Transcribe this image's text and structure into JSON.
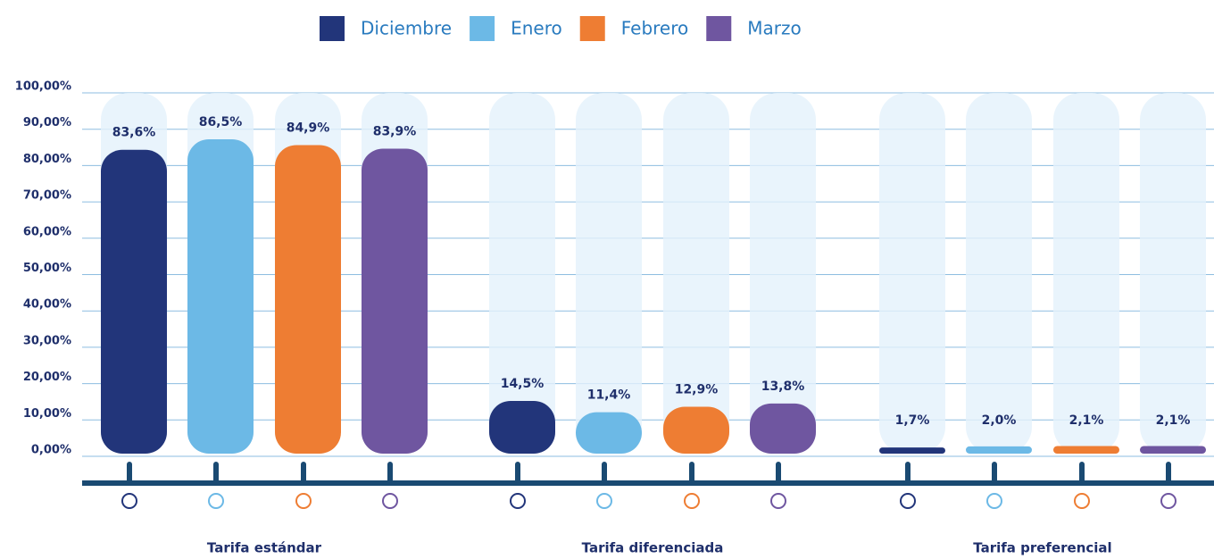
{
  "chart_data": {
    "type": "bar",
    "categories": [
      "Tarifa estándar",
      "Tarifa diferenciada",
      "Tarifa preferencial"
    ],
    "series": [
      {
        "name": "Diciembre",
        "color": "#22357a",
        "values": [
          83.6,
          14.5,
          1.7
        ],
        "value_labels": [
          "83,6%",
          "14,5%",
          "1,7%"
        ]
      },
      {
        "name": "Enero",
        "color": "#6cb9e6",
        "values": [
          86.5,
          11.4,
          2.0
        ],
        "value_labels": [
          "86,5%",
          "11,4%",
          "2,0%"
        ]
      },
      {
        "name": "Febrero",
        "color": "#ee7d33",
        "values": [
          84.9,
          12.9,
          2.1
        ],
        "value_labels": [
          "84,9%",
          "12,9%",
          "2,1%"
        ]
      },
      {
        "name": "Marzo",
        "color": "#6f56a0",
        "values": [
          83.9,
          13.8,
          2.1
        ],
        "value_labels": [
          "83,9%",
          "13,8%",
          "2,1%"
        ]
      }
    ],
    "ylim": [
      0,
      100
    ],
    "yticks": [
      {
        "value": 0,
        "label": "0,00%"
      },
      {
        "value": 10,
        "label": "10,00%"
      },
      {
        "value": 20,
        "label": "20,00%"
      },
      {
        "value": 30,
        "label": "30,00%"
      },
      {
        "value": 40,
        "label": "40,00%"
      },
      {
        "value": 50,
        "label": "50,00%"
      },
      {
        "value": 60,
        "label": "60,00%"
      },
      {
        "value": 70,
        "label": "70,00%"
      },
      {
        "value": 80,
        "label": "80,00%"
      },
      {
        "value": 90,
        "label": "90,00%"
      },
      {
        "value": 100,
        "label": "100,00%"
      }
    ],
    "grid": true,
    "legend": "top"
  }
}
